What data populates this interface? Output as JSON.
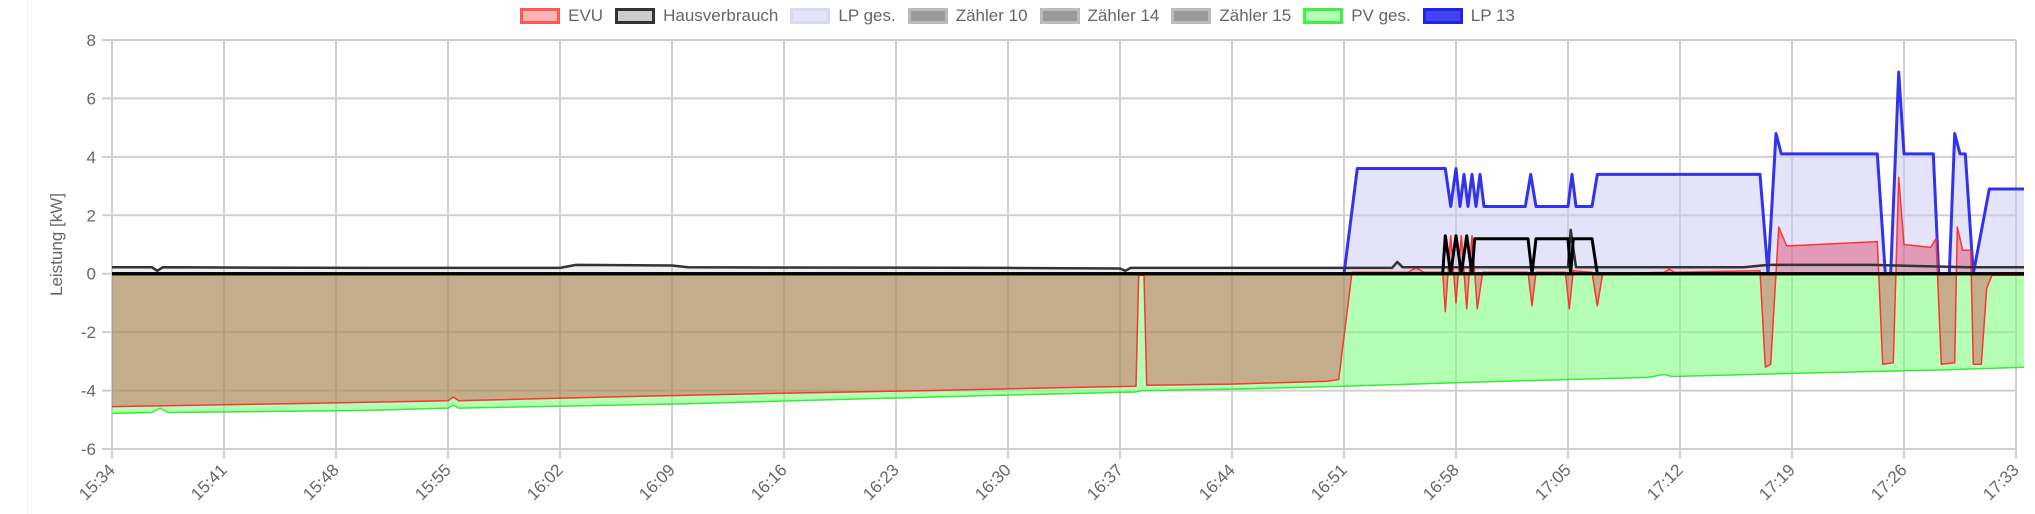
{
  "chart_data": {
    "type": "line",
    "ylabel": "Leistung [kW]",
    "ylim": [
      -6,
      8
    ],
    "yticks": [
      -6,
      -4,
      -2,
      0,
      2,
      4,
      6,
      8
    ],
    "xticks": [
      "15:34",
      "15:41",
      "15:48",
      "15:55",
      "16:02",
      "16:09",
      "16:16",
      "16:23",
      "16:30",
      "16:37",
      "16:44",
      "16:51",
      "16:58",
      "17:05",
      "17:12",
      "17:19",
      "17:26",
      "17:33"
    ],
    "xlim": [
      "15:34",
      "17:33:30"
    ],
    "grid": true,
    "legend_position": "top",
    "series": [
      {
        "name": "EVU",
        "color": "#ff3333",
        "fill": "rgba(220,20,60,0.35)",
        "border": "#ff5555",
        "swatch": "#ffb3b3",
        "points": [
          [
            "15:34",
            -4.55
          ],
          [
            "15:45",
            -4.45
          ],
          [
            "15:55",
            -4.35
          ],
          [
            "15:55:20",
            -4.22
          ],
          [
            "15:55:40",
            -4.35
          ],
          [
            "16:05",
            -4.22
          ],
          [
            "16:15",
            -4.1
          ],
          [
            "16:25",
            -4.0
          ],
          [
            "16:35",
            -3.88
          ],
          [
            "16:38",
            -3.85
          ],
          [
            "16:38:10",
            -0.05
          ],
          [
            "16:38:30",
            -0.05
          ],
          [
            "16:38:40",
            -3.82
          ],
          [
            "16:44",
            -3.78
          ],
          [
            "16:50",
            -3.68
          ],
          [
            "16:50:40",
            -3.62
          ],
          [
            "16:51:30",
            0.05
          ],
          [
            "16:55",
            0.05
          ],
          [
            "16:55:30",
            0.2
          ],
          [
            "16:56",
            0.05
          ],
          [
            "16:57:10",
            0.05
          ],
          [
            "16:57:20",
            -1.3
          ],
          [
            "16:57:40",
            1.3
          ],
          [
            "16:58",
            -1.0
          ],
          [
            "16:58:20",
            1.3
          ],
          [
            "16:58:40",
            -1.2
          ],
          [
            "16:59",
            1.3
          ],
          [
            "16:59:20",
            -1.2
          ],
          [
            "16:59:40",
            0.05
          ],
          [
            "17:02:30",
            0.05
          ],
          [
            "17:02:45",
            -1.1
          ],
          [
            "17:03",
            0.05
          ],
          [
            "17:04:50",
            0.05
          ],
          [
            "17:05:05",
            -1.2
          ],
          [
            "17:05:20",
            0.1
          ],
          [
            "17:06:30",
            0.05
          ],
          [
            "17:06:50",
            -1.1
          ],
          [
            "17:07:10",
            0.0
          ],
          [
            "17:11",
            0.05
          ],
          [
            "17:11:20",
            0.15
          ],
          [
            "17:11:40",
            0.05
          ],
          [
            "17:17",
            0.1
          ],
          [
            "17:17:20",
            -3.2
          ],
          [
            "17:17:40",
            -3.1
          ],
          [
            "17:18:10",
            1.6
          ],
          [
            "17:18:40",
            0.95
          ],
          [
            "17:24:20",
            1.1
          ],
          [
            "17:24:40",
            -3.1
          ],
          [
            "17:25:20",
            -3.05
          ],
          [
            "17:25:40",
            3.3
          ],
          [
            "17:26",
            1.0
          ],
          [
            "17:27:40",
            0.9
          ],
          [
            "17:28",
            1.2
          ],
          [
            "17:28:20",
            -3.1
          ],
          [
            "17:29:10",
            -3.05
          ],
          [
            "17:29:20",
            1.6
          ],
          [
            "17:29:40",
            0.8
          ],
          [
            "17:30:10",
            0.8
          ],
          [
            "17:30:20",
            -3.1
          ],
          [
            "17:30:50",
            -3.1
          ],
          [
            "17:31:10",
            -0.5
          ],
          [
            "17:31:30",
            -0.05
          ],
          [
            "17:33:30",
            -0.05
          ]
        ]
      },
      {
        "name": "Hausverbrauch",
        "color": "#333333",
        "fill": "rgba(200,200,200,0.3)",
        "border": "#333333",
        "swatch": "#cccccc",
        "points": [
          [
            "15:34",
            0.22
          ],
          [
            "15:36:30",
            0.22
          ],
          [
            "15:36:50",
            0.1
          ],
          [
            "15:37:10",
            0.22
          ],
          [
            "15:50",
            0.2
          ],
          [
            "16:02",
            0.2
          ],
          [
            "16:03",
            0.3
          ],
          [
            "16:09",
            0.28
          ],
          [
            "16:10",
            0.22
          ],
          [
            "16:30",
            0.2
          ],
          [
            "16:37",
            0.18
          ],
          [
            "16:37:20",
            0.1
          ],
          [
            "16:37:40",
            0.2
          ],
          [
            "16:51",
            0.2
          ],
          [
            "16:54",
            0.2
          ],
          [
            "16:54:20",
            0.4
          ],
          [
            "16:54:40",
            0.22
          ],
          [
            "17:05",
            0.22
          ],
          [
            "17:05:10",
            1.5
          ],
          [
            "17:05:30",
            0.22
          ],
          [
            "17:16",
            0.22
          ],
          [
            "17:17:30",
            0.3
          ],
          [
            "17:24",
            0.3
          ],
          [
            "17:30",
            0.22
          ],
          [
            "17:33:30",
            0.22
          ]
        ]
      },
      {
        "name": "LP ges.",
        "color": "rgba(180,180,240,0.6)",
        "fill": "rgba(200,200,245,0.5)",
        "border": "#d8d8f5",
        "swatch": "#e3e3fa",
        "points": []
      },
      {
        "name": "Zähler 10",
        "color": "#000000",
        "fill": "none",
        "border": "#bbbbbb",
        "swatch": "#999999",
        "points": [
          [
            "15:34",
            0
          ],
          [
            "16:57:10",
            0
          ],
          [
            "16:57:20",
            1.3
          ],
          [
            "16:57:40",
            0
          ],
          [
            "16:58",
            1.3
          ],
          [
            "16:58:20",
            0
          ],
          [
            "16:58:40",
            1.3
          ],
          [
            "16:59",
            0
          ],
          [
            "16:59:10",
            1.2
          ],
          [
            "17:02:30",
            1.2
          ],
          [
            "17:02:45",
            0
          ],
          [
            "17:03",
            1.2
          ],
          [
            "17:05",
            1.2
          ],
          [
            "17:05:10",
            0
          ],
          [
            "17:05:20",
            1.2
          ],
          [
            "17:06:30",
            1.2
          ],
          [
            "17:06:50",
            0
          ],
          [
            "17:33:30",
            0
          ]
        ]
      },
      {
        "name": "Zähler 14",
        "color": "#000000",
        "fill": "none",
        "border": "#bbbbbb",
        "swatch": "#999999",
        "points": [
          [
            "15:34",
            0
          ],
          [
            "17:33:30",
            0
          ]
        ]
      },
      {
        "name": "Zähler 15",
        "color": "#000000",
        "fill": "none",
        "border": "#bbbbbb",
        "swatch": "#999999",
        "points": [
          [
            "15:34",
            0
          ],
          [
            "17:33:30",
            0
          ]
        ]
      },
      {
        "name": "PV ges.",
        "color": "#33ee33",
        "fill": "rgba(120,255,120,0.55)",
        "border": "#44ee44",
        "swatch": "#b3ffb3",
        "points": [
          [
            "15:34",
            -4.78
          ],
          [
            "15:36:30",
            -4.75
          ],
          [
            "15:37",
            -4.6
          ],
          [
            "15:37:30",
            -4.75
          ],
          [
            "15:50",
            -4.68
          ],
          [
            "15:55",
            -4.6
          ],
          [
            "15:55:20",
            -4.5
          ],
          [
            "15:55:40",
            -4.6
          ],
          [
            "16:10",
            -4.45
          ],
          [
            "16:20",
            -4.3
          ],
          [
            "16:30",
            -4.15
          ],
          [
            "16:38",
            -4.05
          ],
          [
            "16:38:20",
            -4.0
          ],
          [
            "16:44",
            -3.95
          ],
          [
            "16:51",
            -3.85
          ],
          [
            "17:00",
            -3.7
          ],
          [
            "17:10",
            -3.55
          ],
          [
            "17:11",
            -3.45
          ],
          [
            "17:11:30",
            -3.52
          ],
          [
            "17:20",
            -3.4
          ],
          [
            "17:28",
            -3.3
          ],
          [
            "17:33:30",
            -3.2
          ]
        ]
      },
      {
        "name": "LP 13",
        "color": "#3333ee",
        "fill": "rgba(200,200,245,0.5)",
        "border": "#2222ee",
        "swatch": "#4444ee",
        "points": [
          [
            "15:34",
            0
          ],
          [
            "16:51",
            0
          ],
          [
            "16:51:50",
            3.6
          ],
          [
            "16:57:20",
            3.6
          ],
          [
            "16:57:40",
            2.3
          ],
          [
            "16:58",
            3.6
          ],
          [
            "16:58:15",
            2.3
          ],
          [
            "16:58:30",
            3.4
          ],
          [
            "16:58:45",
            2.3
          ],
          [
            "16:59",
            3.4
          ],
          [
            "16:59:15",
            2.3
          ],
          [
            "16:59:30",
            3.4
          ],
          [
            "16:59:45",
            2.3
          ],
          [
            "17:02:20",
            2.3
          ],
          [
            "17:02:40",
            3.4
          ],
          [
            "17:03",
            2.3
          ],
          [
            "17:05",
            2.3
          ],
          [
            "17:05:15",
            3.4
          ],
          [
            "17:05:30",
            2.3
          ],
          [
            "17:06:30",
            2.3
          ],
          [
            "17:06:50",
            3.4
          ],
          [
            "17:17",
            3.4
          ],
          [
            "17:17:30",
            0
          ],
          [
            "17:18",
            4.8
          ],
          [
            "17:18:20",
            4.1
          ],
          [
            "17:24:20",
            4.1
          ],
          [
            "17:24:50",
            0
          ],
          [
            "17:25:10",
            0
          ],
          [
            "17:25:40",
            6.9
          ],
          [
            "17:26",
            4.1
          ],
          [
            "17:27:50",
            4.1
          ],
          [
            "17:28:10",
            0
          ],
          [
            "17:28:50",
            0
          ],
          [
            "17:29:10",
            4.8
          ],
          [
            "17:29:30",
            4.1
          ],
          [
            "17:29:50",
            4.1
          ],
          [
            "17:30:20",
            0
          ],
          [
            "17:31:20",
            2.9
          ],
          [
            "17:33:30",
            2.9
          ]
        ]
      }
    ]
  }
}
